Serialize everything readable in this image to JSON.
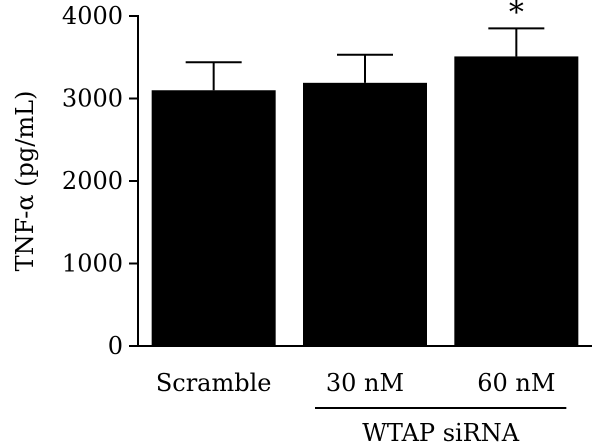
{
  "chart_data": {
    "type": "bar",
    "title": "",
    "xlabel": "",
    "ylabel": "TNF-α (pg/mL)",
    "ylim": [
      0,
      4000
    ],
    "yticks": [
      0,
      1000,
      2000,
      3000,
      4000
    ],
    "categories": [
      "Scramble",
      "30 nM",
      "60 nM"
    ],
    "values": [
      3100,
      3190,
      3510
    ],
    "errors": [
      340,
      340,
      340
    ],
    "significance": [
      "",
      "",
      "*"
    ],
    "group_label": "WTAP siRNA",
    "group_span": [
      "30 nM",
      "60 nM"
    ],
    "bar_color": "#000000",
    "grid": false,
    "legend": "none"
  }
}
